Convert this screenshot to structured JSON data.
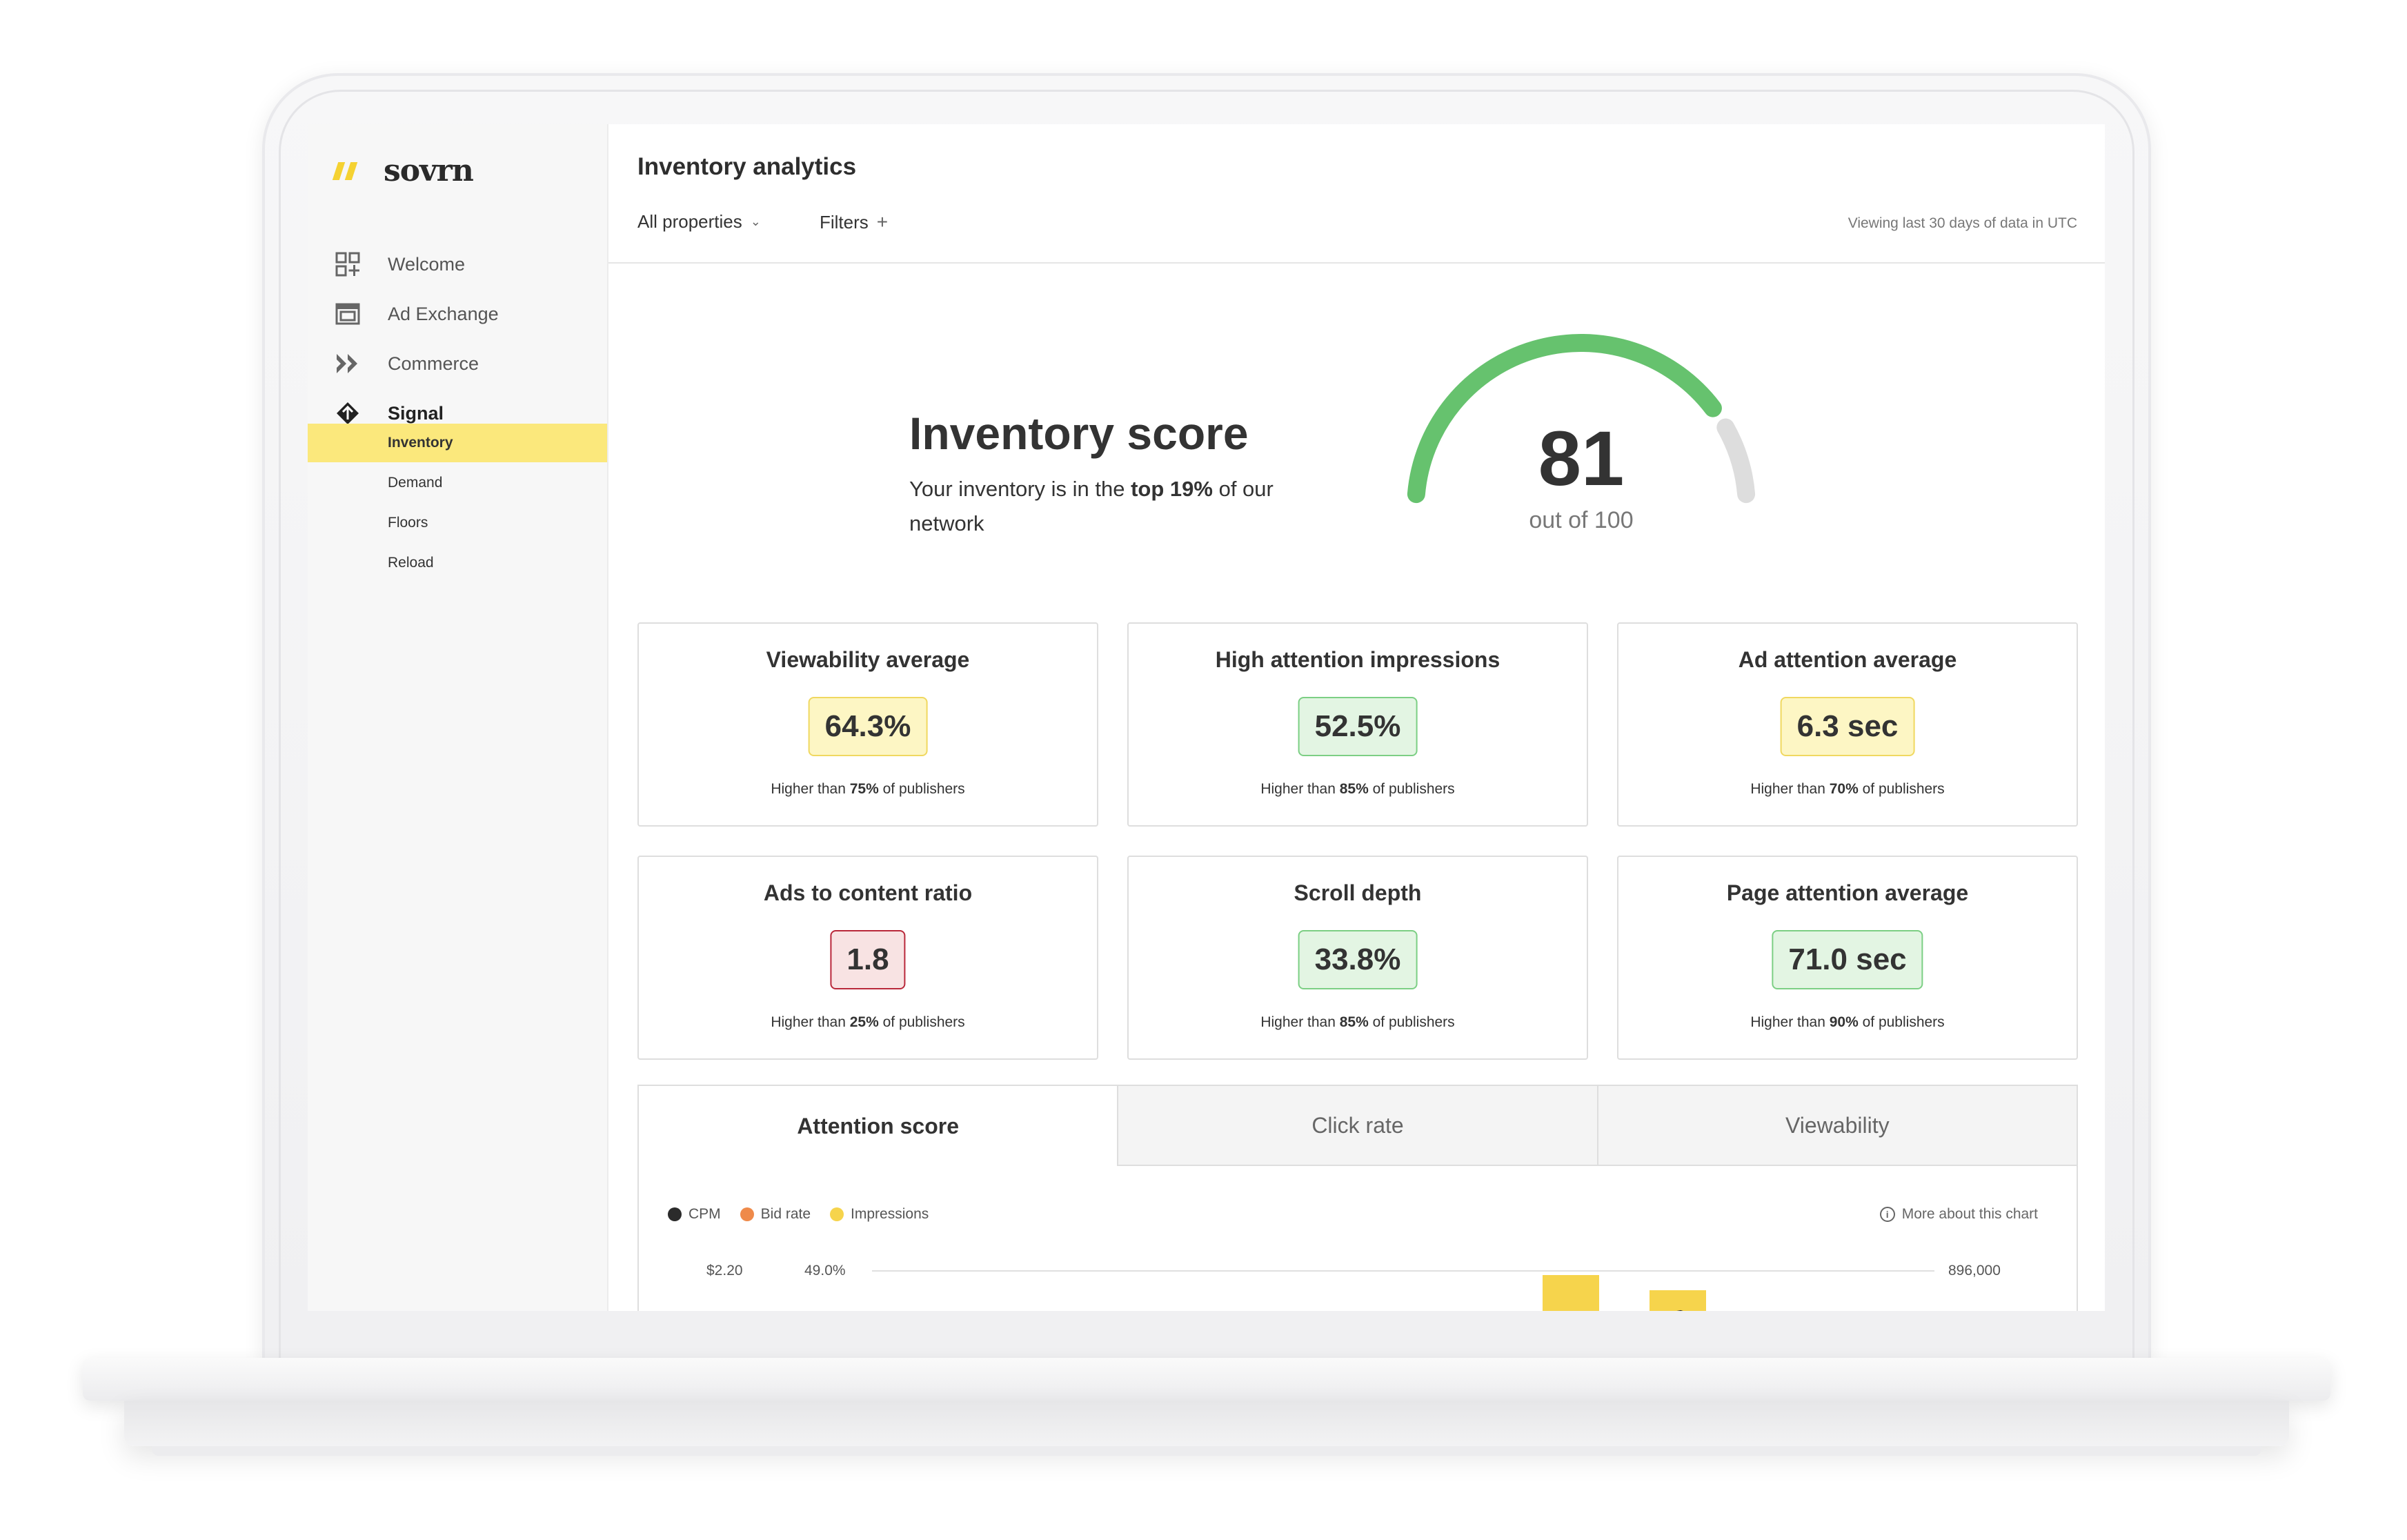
{
  "brand": {
    "name": "sovrn",
    "accent": "#f5d232"
  },
  "sidebar": {
    "nav": [
      {
        "label": "Welcome",
        "icon": "grid-plus-icon"
      },
      {
        "label": "Ad Exchange",
        "icon": "exchange-icon"
      },
      {
        "label": "Commerce",
        "icon": "commerce-icon"
      },
      {
        "label": "Signal",
        "icon": "signal-icon"
      }
    ],
    "signal_sub": [
      {
        "label": "Inventory",
        "selected": true
      },
      {
        "label": "Demand"
      },
      {
        "label": "Floors"
      },
      {
        "label": "Reload"
      }
    ]
  },
  "header": {
    "title": "Inventory analytics",
    "property_filter": "All properties",
    "filters_label": "Filters",
    "range_note": "Viewing last 30 days of data in UTC"
  },
  "score": {
    "title": "Inventory score",
    "desc_pre": "Your inventory is in the ",
    "desc_bold": "top 19%",
    "desc_post": " of our network",
    "value": "81",
    "sub": "out of 100",
    "fraction": 0.81,
    "color_fill": "#66c26e",
    "color_track": "#dddddd"
  },
  "metrics": [
    {
      "title": "Viewability average",
      "value": "64.3%",
      "tone": "yellow",
      "note_pre": "Higher than ",
      "note_bold": "75%",
      "note_post": " of publishers"
    },
    {
      "title": "High attention impressions",
      "value": "52.5%",
      "tone": "green",
      "note_pre": "Higher than ",
      "note_bold": "85%",
      "note_post": " of publishers"
    },
    {
      "title": "Ad attention average",
      "value": "6.3 sec",
      "tone": "yellow",
      "note_pre": "Higher than ",
      "note_bold": "70%",
      "note_post": " of publishers"
    },
    {
      "title": "Ads to content ratio",
      "value": "1.8",
      "tone": "red",
      "note_pre": "Higher than ",
      "note_bold": "25%",
      "note_post": " of publishers"
    },
    {
      "title": "Scroll depth",
      "value": "33.8%",
      "tone": "green",
      "note_pre": "Higher than ",
      "note_bold": "85%",
      "note_post": " of publishers"
    },
    {
      "title": "Page attention average",
      "value": "71.0 sec",
      "tone": "green",
      "note_pre": "Higher than ",
      "note_bold": "90%",
      "note_post": " of publishers"
    }
  ],
  "tabs": [
    {
      "label": "Attention score",
      "active": true
    },
    {
      "label": "Click rate"
    },
    {
      "label": "Viewability"
    }
  ],
  "chart": {
    "legend": [
      {
        "label": "CPM",
        "color": "#2b2b2b"
      },
      {
        "label": "Bid rate",
        "color": "#ef8a4a"
      },
      {
        "label": "Impressions",
        "color": "#f6d44c"
      }
    ],
    "more_label": "More about this chart",
    "y_left_cpm_top": "$2.20",
    "y_left_bid_top": "49.0%",
    "y_right_top": "896,000"
  }
}
